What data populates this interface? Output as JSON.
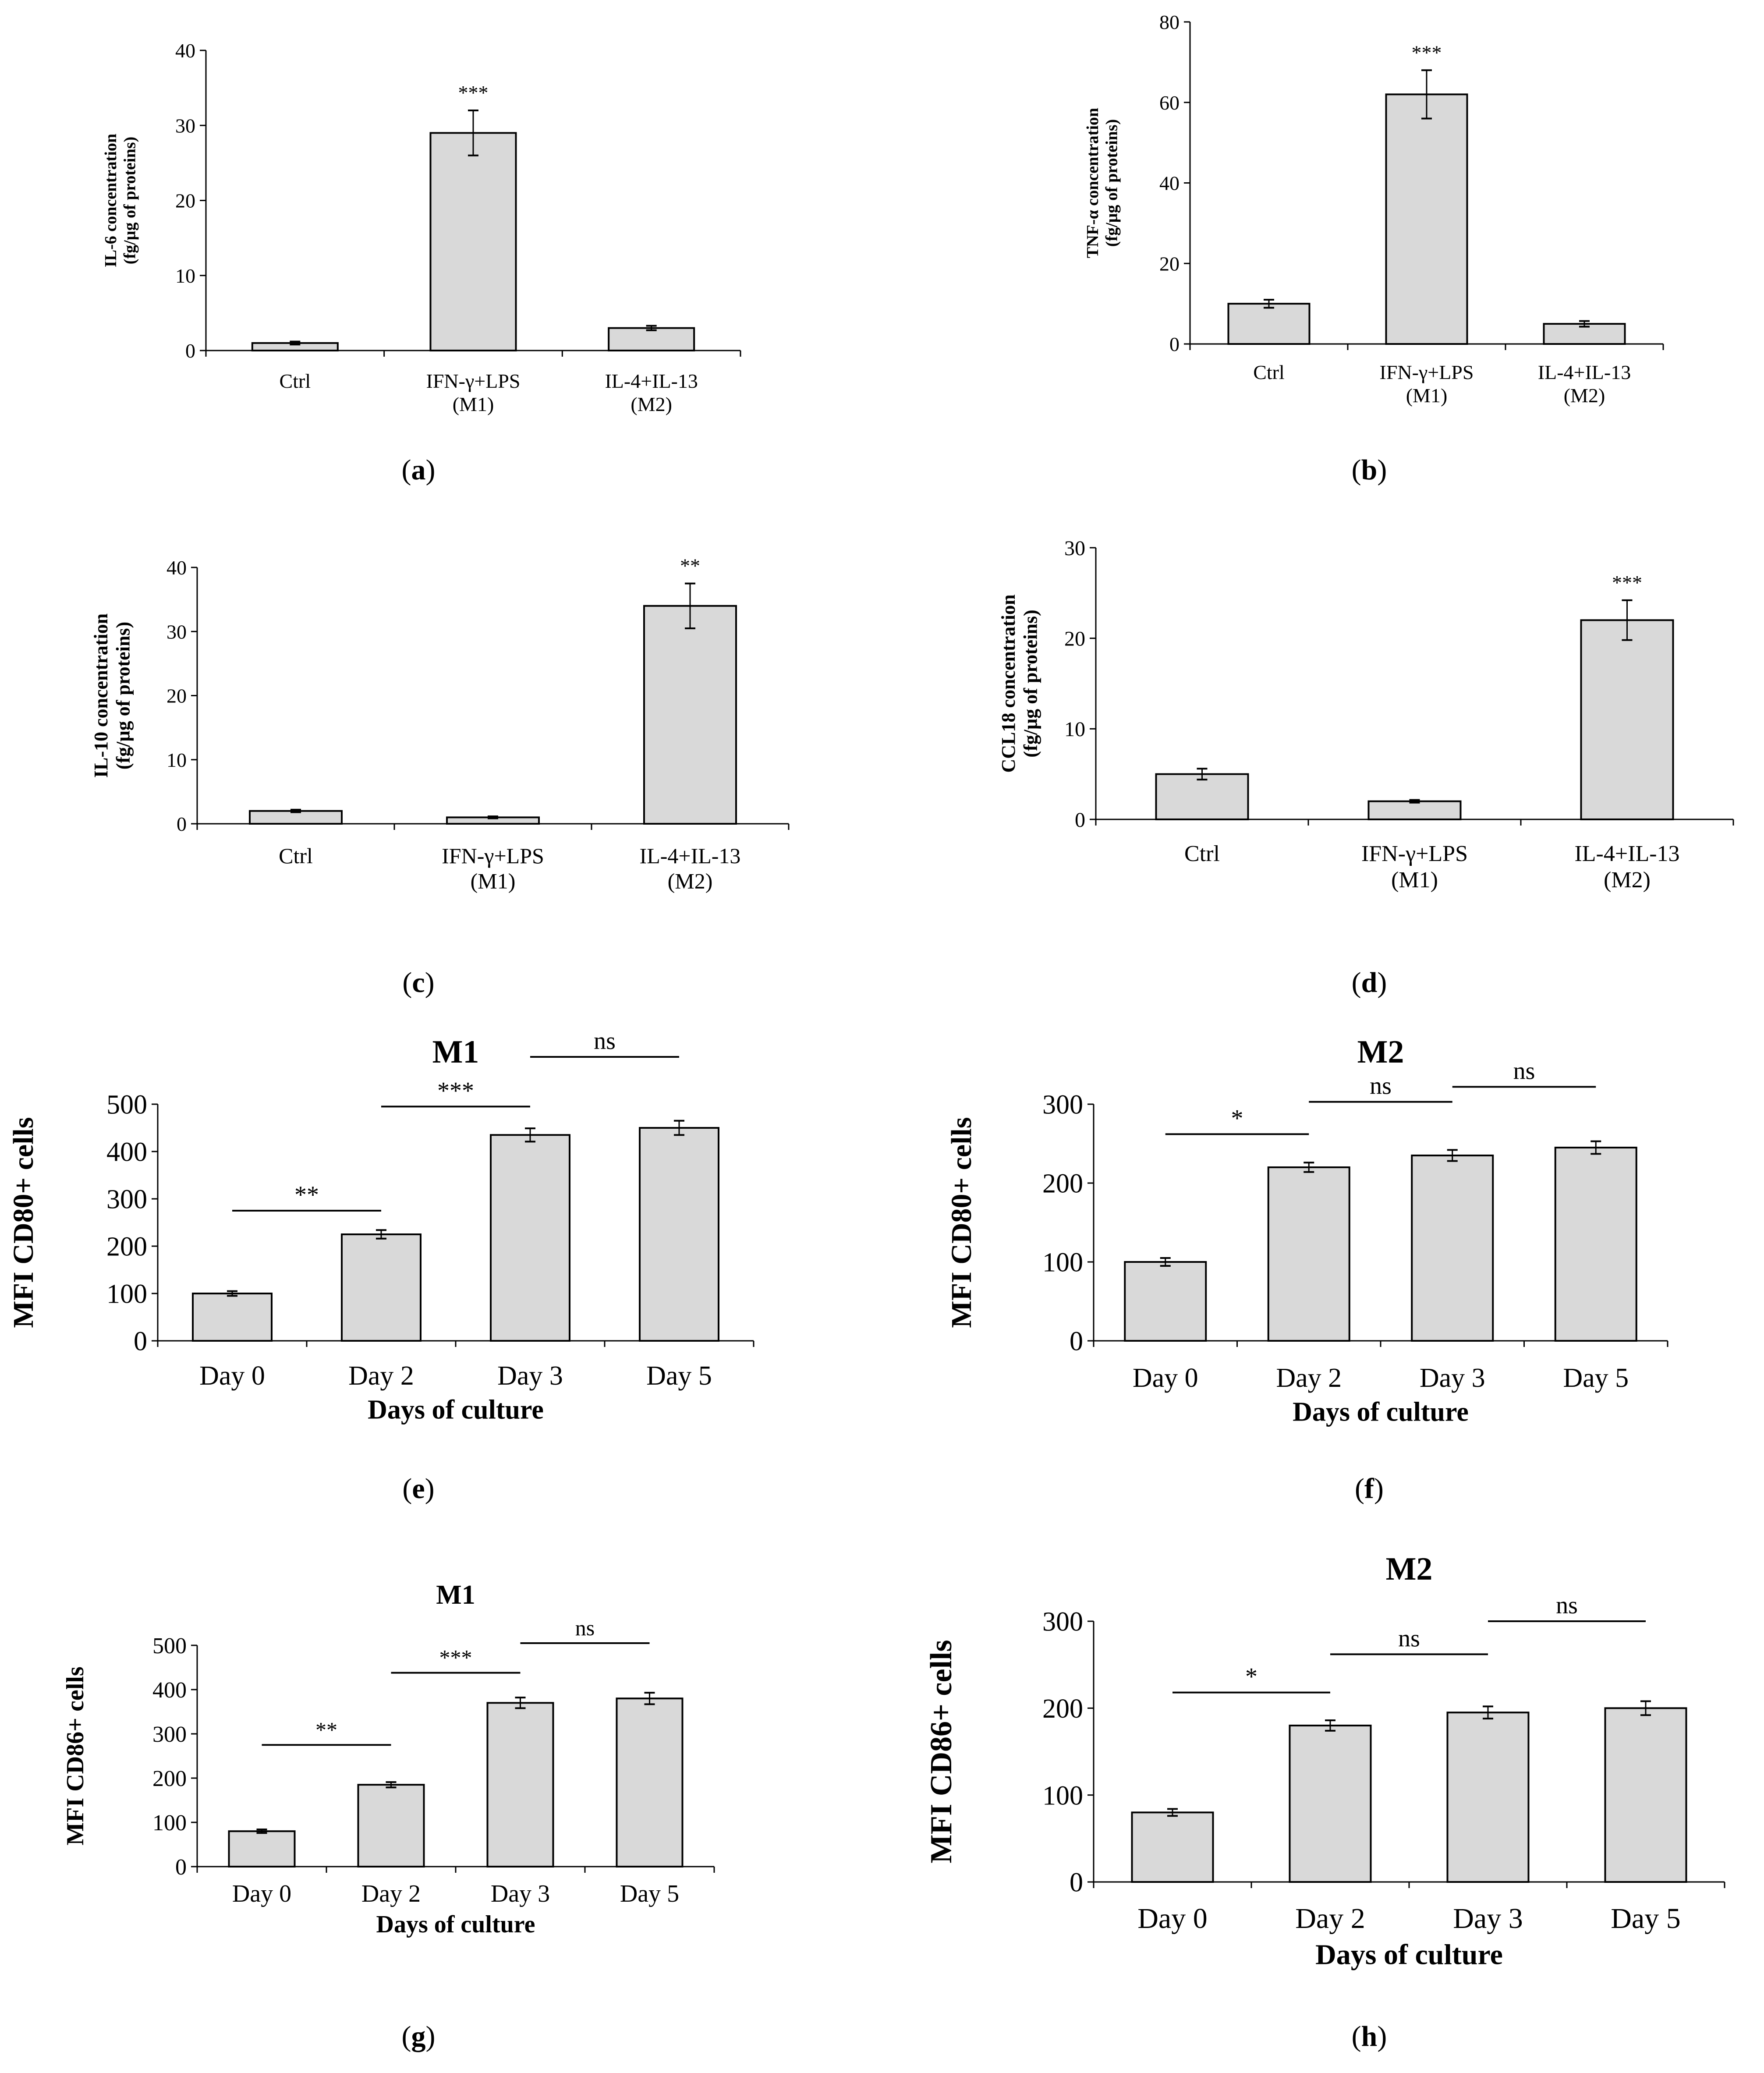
{
  "figure": {
    "captions": [
      "a",
      "b",
      "c",
      "d",
      "e",
      "f",
      "g",
      "h"
    ]
  },
  "colors": {
    "bar_fill": "#d9d9d9",
    "bar_stroke": "#000000",
    "axis": "#000000"
  },
  "chart_data": [
    {
      "panel": "a",
      "type": "bar",
      "title": "",
      "categories": [
        [
          "Ctrl"
        ],
        [
          "IFN-γ+LPS",
          "(M1)"
        ],
        [
          "IL-4+IL-13",
          "(M2)"
        ]
      ],
      "values": [
        1,
        29,
        3
      ],
      "errors": [
        0.2,
        3,
        0.3
      ],
      "ylim": [
        0,
        40
      ],
      "yticks": [
        0,
        10,
        20,
        30,
        40
      ],
      "ylabel": [
        "IL-6 concentration",
        "(fg/µg of proteins)"
      ],
      "xlabel": "",
      "annotations": [
        {
          "bar": 1,
          "text": "***"
        }
      ],
      "brackets": []
    },
    {
      "panel": "b",
      "type": "bar",
      "title": "",
      "categories": [
        [
          "Ctrl"
        ],
        [
          "IFN-γ+LPS",
          "(M1)"
        ],
        [
          "IL-4+IL-13",
          "(M2)"
        ]
      ],
      "values": [
        10,
        62,
        5
      ],
      "errors": [
        1,
        6,
        0.7
      ],
      "ylim": [
        0,
        80
      ],
      "yticks": [
        0,
        20,
        40,
        60,
        80
      ],
      "ylabel": [
        "TNF-α concentration",
        "(fg/µg of proteins)"
      ],
      "xlabel": "",
      "annotations": [
        {
          "bar": 1,
          "text": "***"
        }
      ],
      "brackets": []
    },
    {
      "panel": "c",
      "type": "bar",
      "title": "",
      "categories": [
        [
          "Ctrl"
        ],
        [
          "IFN-γ+LPS",
          "(M1)"
        ],
        [
          "IL-4+IL-13",
          "(M2)"
        ]
      ],
      "values": [
        2,
        1,
        34
      ],
      "errors": [
        0.2,
        0.15,
        3.5
      ],
      "ylim": [
        0,
        40
      ],
      "yticks": [
        0,
        10,
        20,
        30,
        40
      ],
      "ylabel": [
        "IL-10 concentration",
        "(fg/µg of proteins)"
      ],
      "xlabel": "",
      "annotations": [
        {
          "bar": 2,
          "text": "**"
        }
      ],
      "brackets": []
    },
    {
      "panel": "d",
      "type": "bar",
      "title": "",
      "categories": [
        [
          "Ctrl"
        ],
        [
          "IFN-γ+LPS",
          "(M1)"
        ],
        [
          "IL-4+IL-13",
          "(M2)"
        ]
      ],
      "values": [
        5,
        2,
        22
      ],
      "errors": [
        0.6,
        0.15,
        2.2
      ],
      "ylim": [
        0,
        30
      ],
      "yticks": [
        0,
        10,
        20,
        30
      ],
      "ylabel": [
        "CCL18 concentration",
        "(fg/µg of proteins)"
      ],
      "xlabel": "",
      "annotations": [
        {
          "bar": 2,
          "text": "***"
        }
      ],
      "brackets": []
    },
    {
      "panel": "e",
      "type": "bar",
      "title": "M1",
      "categories": [
        [
          "Day 0"
        ],
        [
          "Day 2"
        ],
        [
          "Day 3"
        ],
        [
          "Day 5"
        ]
      ],
      "values": [
        100,
        225,
        435,
        450
      ],
      "errors": [
        5,
        9,
        14,
        15
      ],
      "ylim": [
        0,
        500
      ],
      "yticks": [
        0,
        100,
        200,
        300,
        400,
        500
      ],
      "ylabel": [
        "MFI CD80+ cells"
      ],
      "xlabel": "Days of culture",
      "annotations": [],
      "brackets": [
        {
          "from": 0,
          "to": 1,
          "y": 275,
          "text": "**"
        },
        {
          "from": 1,
          "to": 2,
          "y": 495,
          "text": "***"
        },
        {
          "from": 2,
          "to": 3,
          "y": 600,
          "text": "ns"
        }
      ]
    },
    {
      "panel": "f",
      "type": "bar",
      "title": "M2",
      "categories": [
        [
          "Day 0"
        ],
        [
          "Day 2"
        ],
        [
          "Day 3"
        ],
        [
          "Day 5"
        ]
      ],
      "values": [
        100,
        220,
        235,
        245
      ],
      "errors": [
        5,
        6,
        7,
        8
      ],
      "ylim": [
        0,
        300
      ],
      "yticks": [
        0,
        100,
        200,
        300
      ],
      "ylabel": [
        "MFI CD80+ cells"
      ],
      "xlabel": "Days of culture",
      "annotations": [],
      "brackets": [
        {
          "from": 0,
          "to": 1,
          "y": 262,
          "text": "*"
        },
        {
          "from": 1,
          "to": 2,
          "y": 303,
          "text": "ns"
        },
        {
          "from": 2,
          "to": 3,
          "y": 322,
          "text": "ns"
        }
      ]
    },
    {
      "panel": "g",
      "type": "bar",
      "title": "M1",
      "categories": [
        [
          "Day 0"
        ],
        [
          "Day 2"
        ],
        [
          "Day 3"
        ],
        [
          "Day 5"
        ]
      ],
      "values": [
        80,
        185,
        370,
        380
      ],
      "errors": [
        4,
        6,
        12,
        13
      ],
      "ylim": [
        0,
        500
      ],
      "yticks": [
        0,
        100,
        200,
        300,
        400,
        500
      ],
      "ylabel": [
        "MFI CD86+ cells"
      ],
      "xlabel": "Days of culture",
      "annotations": [],
      "brackets": [
        {
          "from": 0,
          "to": 1,
          "y": 275,
          "text": "**"
        },
        {
          "from": 1,
          "to": 2,
          "y": 438,
          "text": "***"
        },
        {
          "from": 2,
          "to": 3,
          "y": 505,
          "text": "ns"
        }
      ]
    },
    {
      "panel": "h",
      "type": "bar",
      "title": "M2",
      "categories": [
        [
          "Day 0"
        ],
        [
          "Day 2"
        ],
        [
          "Day 3"
        ],
        [
          "Day 5"
        ]
      ],
      "values": [
        80,
        180,
        195,
        200
      ],
      "errors": [
        4,
        6,
        7,
        8
      ],
      "ylim": [
        0,
        300
      ],
      "yticks": [
        0,
        100,
        200,
        300
      ],
      "ylabel": [
        "MFI CD86+ cells"
      ],
      "xlabel": "Days of culture",
      "annotations": [],
      "brackets": [
        {
          "from": 0,
          "to": 1,
          "y": 218,
          "text": "*"
        },
        {
          "from": 1,
          "to": 2,
          "y": 262,
          "text": "ns"
        },
        {
          "from": 2,
          "to": 3,
          "y": 300,
          "text": "ns"
        }
      ]
    }
  ]
}
